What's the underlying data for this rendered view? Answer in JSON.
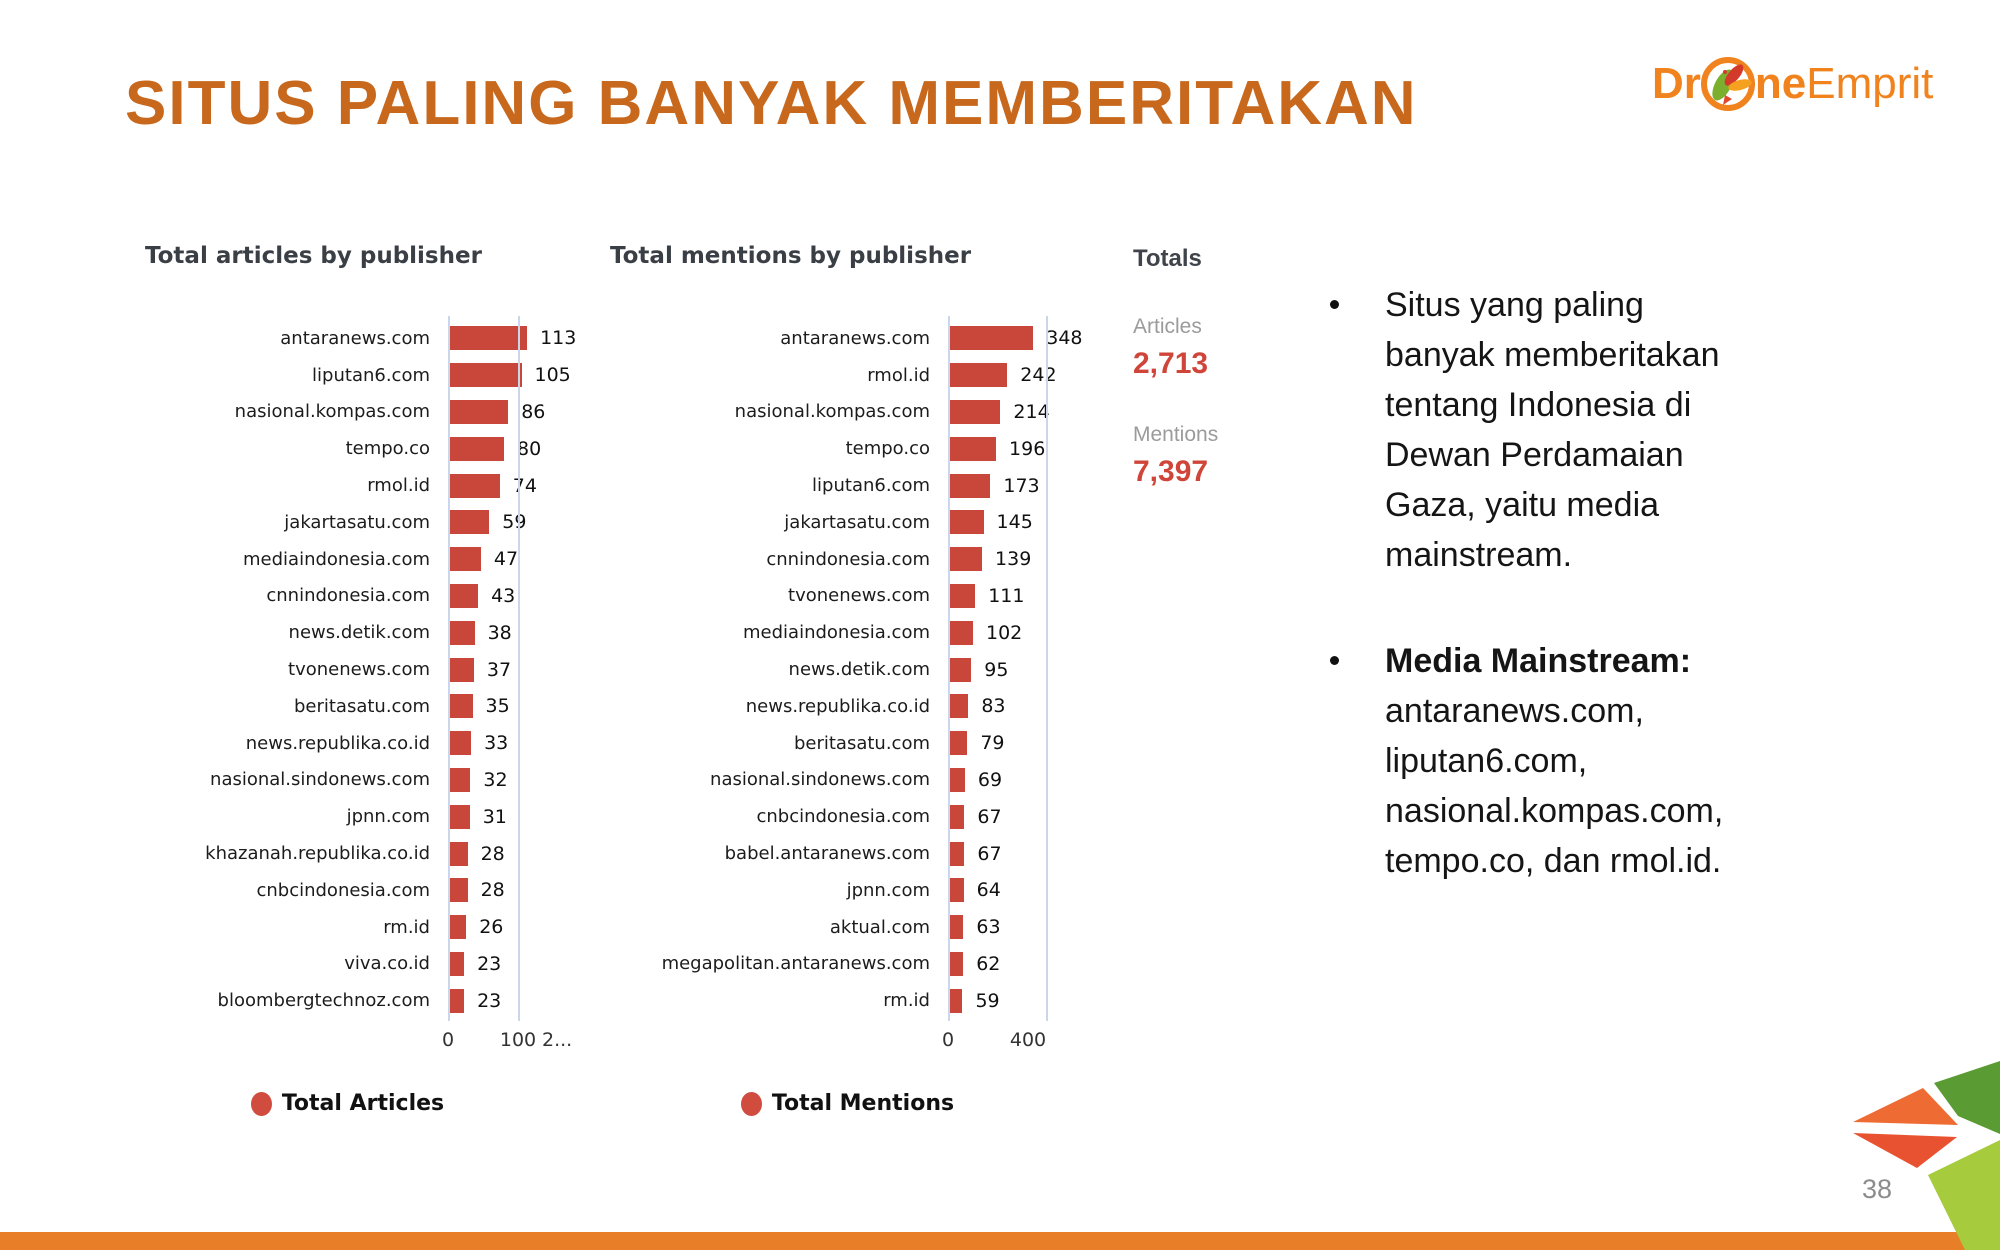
{
  "slide": {
    "title": "SITUS PALING BANYAK MEMBERITAKAN",
    "page_number": "38",
    "logo": {
      "part1": "Dr",
      "part2": "ne",
      "part3": "Emprit"
    }
  },
  "chart_data": [
    {
      "type": "bar",
      "orientation": "horizontal",
      "title": "Total articles by publisher",
      "legend": "Total Articles",
      "x_ticks": [
        "0",
        "100",
        "2..."
      ],
      "xlim": [
        0,
        200
      ],
      "grid": "vertical lines at 0 and 100",
      "categories": [
        "antaranews.com",
        "liputan6.com",
        "nasional.kompas.com",
        "tempo.co",
        "rmol.id",
        "jakartasatu.com",
        "mediaindonesia.com",
        "cnnindonesia.com",
        "news.detik.com",
        "tvonenews.com",
        "beritasatu.com",
        "news.republika.co.id",
        "nasional.sindonews.com",
        "jpnn.com",
        "khazanah.republika.co.id",
        "cnbcindonesia.com",
        "rm.id",
        "viva.co.id",
        "bloombergtechnoz.com"
      ],
      "values": [
        113,
        105,
        86,
        80,
        74,
        59,
        47,
        43,
        38,
        37,
        35,
        33,
        32,
        31,
        28,
        28,
        26,
        23,
        23
      ]
    },
    {
      "type": "bar",
      "orientation": "horizontal",
      "title": "Total mentions by publisher",
      "legend": "Total Mentions",
      "x_ticks": [
        "0",
        "400"
      ],
      "xlim": [
        0,
        400
      ],
      "grid": "vertical lines at 0 and 400",
      "categories": [
        "antaranews.com",
        "rmol.id",
        "nasional.kompas.com",
        "tempo.co",
        "liputan6.com",
        "jakartasatu.com",
        "cnnindonesia.com",
        "tvonenews.com",
        "mediaindonesia.com",
        "news.detik.com",
        "news.republika.co.id",
        "beritasatu.com",
        "nasional.sindonews.com",
        "cnbcindonesia.com",
        "babel.antaranews.com",
        "jpnn.com",
        "aktual.com",
        "megapolitan.antaranews.com",
        "rm.id"
      ],
      "values": [
        348,
        242,
        214,
        196,
        173,
        145,
        139,
        111,
        102,
        95,
        83,
        79,
        69,
        67,
        67,
        64,
        63,
        62,
        59
      ]
    }
  ],
  "totals": {
    "heading": "Totals",
    "articles_label": "Articles",
    "articles_value": "2,713",
    "mentions_label": "Mentions",
    "mentions_value": "7,397"
  },
  "notes": {
    "bullet1": "Situs yang paling banyak memberitakan tentang Indonesia di Dewan Perdamaian Gaza, yaitu media mainstream.",
    "bullet2_bold": "Media Mainstream:",
    "bullet2_rest": " antaranews.com, liputan6.com, nasional.kompas.com, tempo.co, dan rmol.id."
  },
  "colors": {
    "title": "#c7681d",
    "bar": "#c9473a",
    "totals_number": "#d0453a",
    "axis_line": "#ccd6eb",
    "footer_bar": "#e87f28",
    "logo_orange": "#f0831e",
    "deco_dark_green": "#5a9c33",
    "deco_light_green": "#a6cb3c",
    "deco_orange": "#ee6c33",
    "deco_red": "#e85230"
  }
}
